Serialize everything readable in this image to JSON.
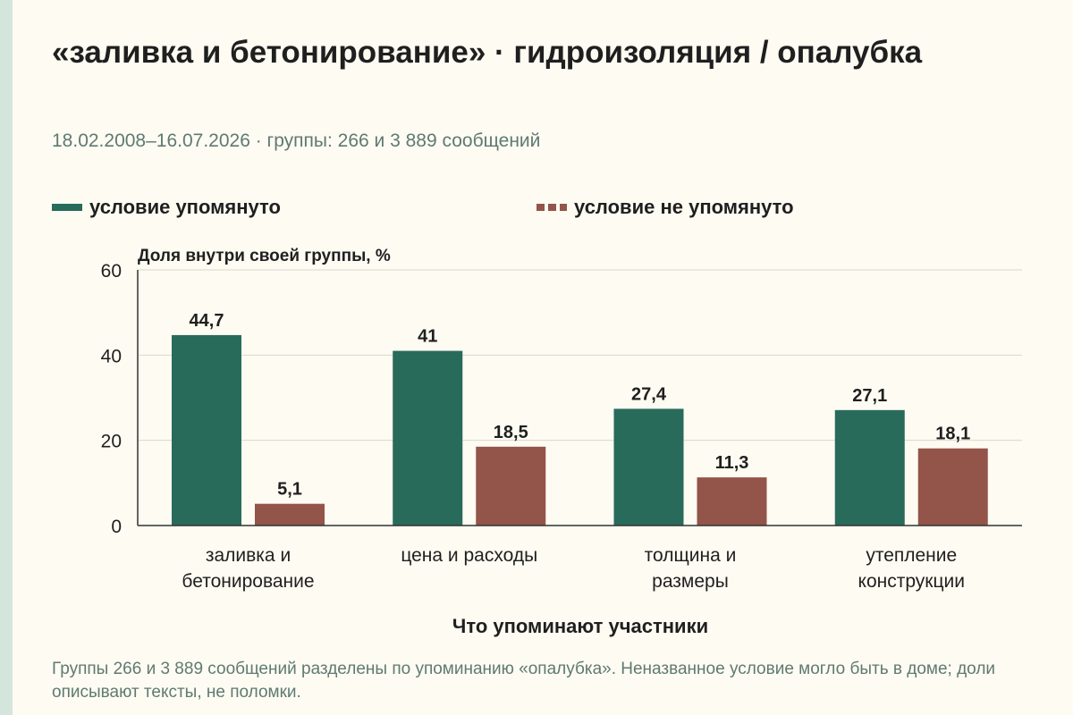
{
  "title": "«заливка и бетонирование» · гидроизоляция / опалубка",
  "subtitle": "18.02.2008–16.07.2026 · группы: 266 и 3 889 сообщений",
  "footnote": "Группы 266 и 3 889 сообщений разделены по упоминанию «опалубка». Неназванное условие могло быть в доме; доли описывают тексты, не поломки.",
  "colors": {
    "series1": "#286b5b",
    "series2": "#93544a"
  },
  "chart_data": {
    "type": "bar",
    "categories": [
      [
        "заливка и",
        "бетонирование"
      ],
      [
        "цена и расходы"
      ],
      [
        "толщина и",
        "размеры"
      ],
      [
        "утепление",
        "конструкции"
      ]
    ],
    "series": [
      {
        "name": "условие упомянуто",
        "values": [
          44.7,
          41,
          27.4,
          27.1
        ],
        "labels": [
          "44,7",
          "41",
          "27,4",
          "27,1"
        ]
      },
      {
        "name": "условие не упомянуто",
        "values": [
          5.1,
          18.5,
          11.3,
          18.1
        ],
        "labels": [
          "5,1",
          "18,5",
          "11,3",
          "18,1"
        ]
      }
    ],
    "ylabel": "Доля внутри своей группы, %",
    "xlabel": "Что упоминают участники",
    "ylim": [
      0,
      60
    ],
    "yticks": [
      0,
      20,
      40,
      60
    ],
    "grid": true,
    "legend": "top"
  }
}
